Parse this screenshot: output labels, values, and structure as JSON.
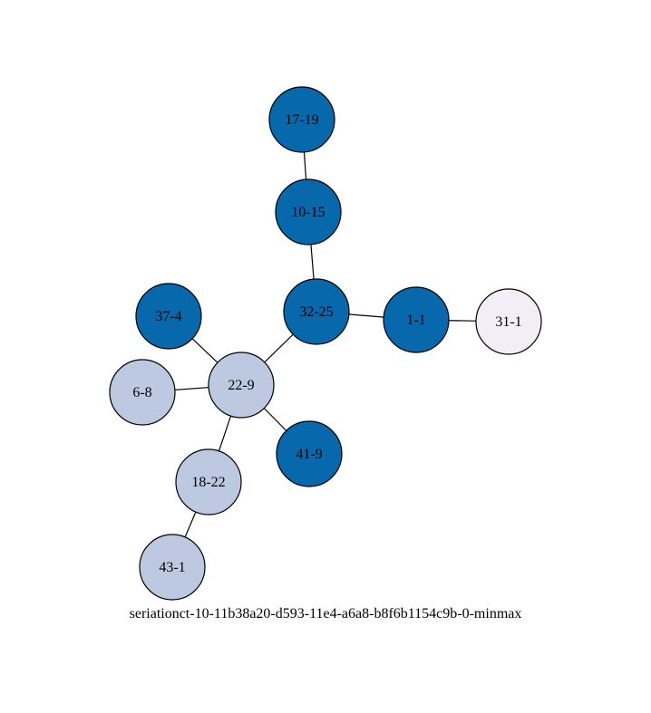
{
  "graph": {
    "caption": "seriationct-10-11b38a20-d593-11e4-a6a8-b8f6b1154c9b-0-minmax",
    "colors": {
      "dark": "#0868ac",
      "light": "#bdc9e1",
      "pale": "#f1eef6"
    },
    "nodes": [
      {
        "id": "17-19",
        "label": "17-19",
        "color": "dark"
      },
      {
        "id": "10-15",
        "label": "10-15",
        "color": "dark"
      },
      {
        "id": "32-25",
        "label": "32-25",
        "color": "dark"
      },
      {
        "id": "1-1",
        "label": "1-1",
        "color": "dark"
      },
      {
        "id": "31-1",
        "label": "31-1",
        "color": "pale"
      },
      {
        "id": "37-4",
        "label": "37-4",
        "color": "dark"
      },
      {
        "id": "22-9",
        "label": "22-9",
        "color": "light"
      },
      {
        "id": "6-8",
        "label": "6-8",
        "color": "light"
      },
      {
        "id": "41-9",
        "label": "41-9",
        "color": "dark"
      },
      {
        "id": "18-22",
        "label": "18-22",
        "color": "light"
      },
      {
        "id": "43-1",
        "label": "43-1",
        "color": "light"
      }
    ],
    "edges": [
      [
        "17-19",
        "10-15"
      ],
      [
        "10-15",
        "32-25"
      ],
      [
        "32-25",
        "1-1"
      ],
      [
        "1-1",
        "31-1"
      ],
      [
        "32-25",
        "22-9"
      ],
      [
        "37-4",
        "22-9"
      ],
      [
        "6-8",
        "22-9"
      ],
      [
        "22-9",
        "41-9"
      ],
      [
        "22-9",
        "18-22"
      ],
      [
        "18-22",
        "43-1"
      ]
    ]
  }
}
